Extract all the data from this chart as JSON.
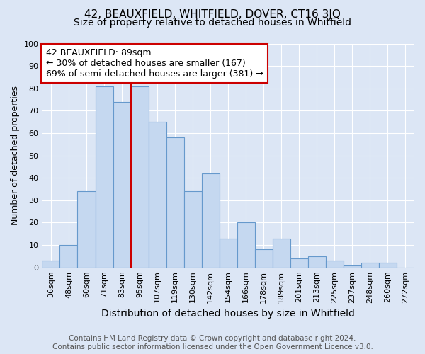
{
  "title": "42, BEAUXFIELD, WHITFIELD, DOVER, CT16 3JQ",
  "subtitle": "Size of property relative to detached houses in Whitfield",
  "xlabel": "Distribution of detached houses by size in Whitfield",
  "ylabel": "Number of detached properties",
  "footer_line1": "Contains HM Land Registry data © Crown copyright and database right 2024.",
  "footer_line2": "Contains public sector information licensed under the Open Government Licence v3.0.",
  "bin_labels": [
    "36sqm",
    "48sqm",
    "60sqm",
    "71sqm",
    "83sqm",
    "95sqm",
    "107sqm",
    "119sqm",
    "130sqm",
    "142sqm",
    "154sqm",
    "166sqm",
    "178sqm",
    "189sqm",
    "201sqm",
    "213sqm",
    "225sqm",
    "237sqm",
    "248sqm",
    "260sqm",
    "272sqm"
  ],
  "bar_heights": [
    3,
    10,
    34,
    81,
    74,
    81,
    65,
    58,
    34,
    42,
    13,
    20,
    8,
    13,
    4,
    5,
    3,
    1,
    2,
    2,
    0
  ],
  "bar_color": "#c5d8f0",
  "bar_edge_color": "#6699cc",
  "vline_x": 4.5,
  "annotation_text": "42 BEAUXFIELD: 89sqm\n← 30% of detached houses are smaller (167)\n69% of semi-detached houses are larger (381) →",
  "annotation_box_color": "#ffffff",
  "annotation_box_edge_color": "#cc0000",
  "vline_color": "#cc0000",
  "ylim": [
    0,
    100
  ],
  "bg_color": "#dce6f5",
  "plot_bg_color": "#dce6f5",
  "grid_color": "#ffffff",
  "title_fontsize": 11,
  "subtitle_fontsize": 10,
  "label_fontsize": 9,
  "tick_fontsize": 8,
  "footer_fontsize": 7.5
}
